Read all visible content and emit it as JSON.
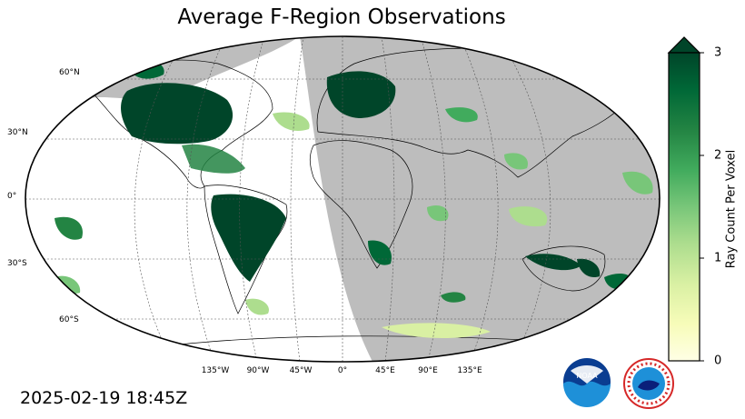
{
  "title": "Average F-Region Observations",
  "timestamp": "2025-02-19 18:45Z",
  "map": {
    "projection": "Robinson",
    "night_shading_color": "#bdbdbd",
    "lat_labels": [
      "60°N",
      "30°N",
      "0°",
      "30°S",
      "60°S"
    ],
    "lon_labels": [
      "135°W",
      "90°W",
      "45°W",
      "0°",
      "45°E",
      "90°E",
      "135°E"
    ]
  },
  "colorbar": {
    "label": "Ray Count Per Voxel",
    "ticks": [
      "0",
      "1",
      "2",
      "3"
    ],
    "range": [
      0,
      3
    ],
    "extend": "max",
    "colormap": "YlGn",
    "colors": [
      "#ffffe5",
      "#f7fcb9",
      "#d9f0a3",
      "#addd8e",
      "#78c679",
      "#41ab5d",
      "#238443",
      "#006837",
      "#004529"
    ]
  },
  "logos": {
    "noaa": "NOAA",
    "nws": "NATIONAL WEATHER SERVICE"
  }
}
